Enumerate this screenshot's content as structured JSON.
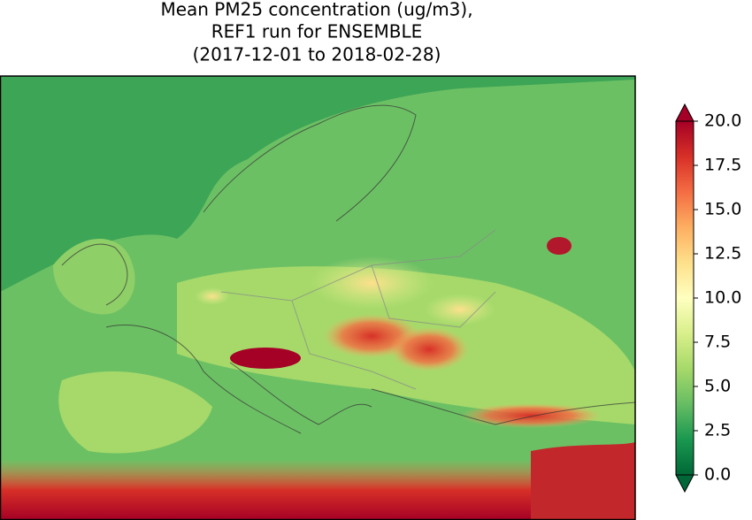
{
  "map": {
    "title": [
      "Mean PM25 concentration (ug/m3),",
      "REF1 run for ENSEMBLE",
      "(2017-12-01 to 2018-02-28)"
    ],
    "colorbar": {
      "ylim": [
        0,
        20
      ],
      "yticks": [
        {
          "value": 0,
          "label": "0.0"
        },
        2.5,
        {
          "value": 5,
          "label": "5.0"
        },
        7.5,
        {
          "value": 10,
          "label": "10.0"
        },
        12.5,
        {
          "value": 15,
          "label": "15.0"
        },
        17.5,
        {
          "value": 20,
          "label": "20.0"
        }
      ],
      "extend": "both"
    }
  }
}
